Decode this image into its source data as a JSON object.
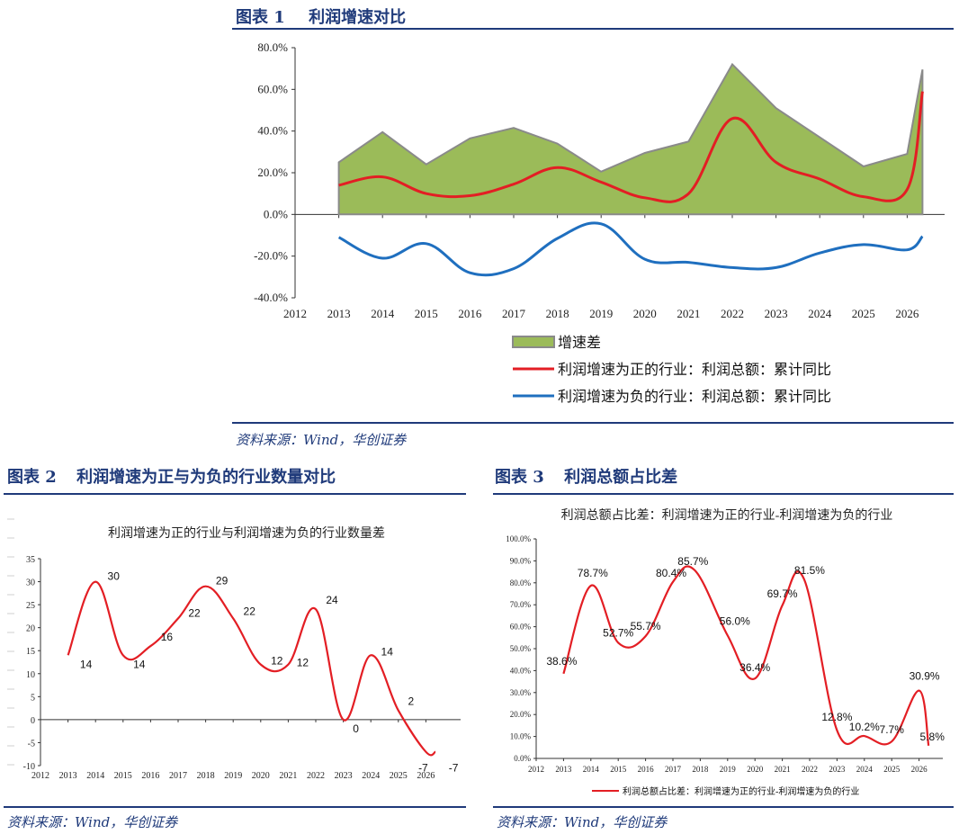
{
  "fig1": {
    "header_label": "图表 1",
    "header_title": "利润增速对比",
    "source": "资料来源：Wind，华创证券"
  },
  "fig2": {
    "header_label": "图表 2",
    "header_title": "利润增速为正与为负的行业数量对比",
    "source": "资料来源：Wind，华创证券"
  },
  "fig3": {
    "header_label": "图表 3",
    "header_title": "利润总额占比差",
    "source": "资料来源：Wind，华创证券"
  },
  "chart_data": [
    {
      "type": "area",
      "title": "",
      "xlabel": "",
      "ylabel": "",
      "x_ticks": [
        "2012",
        "2013",
        "2014",
        "2015",
        "2016",
        "2017",
        "2018",
        "2019",
        "2020",
        "2021",
        "2022",
        "2023",
        "2024",
        "2025",
        "2026"
      ],
      "y_ticks": [
        "80.0%",
        "60.0%",
        "40.0%",
        "20.0%",
        "0.0%",
        "-20.0%",
        "-40.0%"
      ],
      "ylim": [
        -40,
        80
      ],
      "legend_position": "bottom",
      "grid": false,
      "series": [
        {
          "name": "增速差",
          "type": "area",
          "color": "#9bbb59",
          "x": [
            2013,
            2014,
            2015,
            2016,
            2017,
            2018,
            2019,
            2020,
            2021,
            2022,
            2023,
            2024,
            2025,
            2026,
            2026.35
          ],
          "values": [
            25,
            39.5,
            24,
            36.5,
            41.5,
            34,
            20.5,
            29.5,
            35,
            72,
            51,
            37,
            23,
            29,
            69.5
          ]
        },
        {
          "name": "利润增速为正的行业：利润总额：累计同比",
          "type": "line",
          "color": "#e31e24",
          "x": [
            2013,
            2014,
            2015,
            2016,
            2017,
            2018,
            2019,
            2020,
            2021,
            2022,
            2023,
            2024,
            2025,
            2026,
            2026.35
          ],
          "values": [
            14,
            18,
            10,
            9,
            14.5,
            22.5,
            15.5,
            8,
            10,
            46,
            25,
            17,
            8.5,
            12,
            59
          ]
        },
        {
          "name": "利润增速为负的行业：利润总额：累计同比",
          "type": "line",
          "color": "#1f6fbf",
          "x": [
            2013,
            2014,
            2015,
            2016,
            2017,
            2018,
            2019,
            2020,
            2021,
            2022,
            2023,
            2024,
            2025,
            2026,
            2026.35
          ],
          "values": [
            -11,
            -21,
            -14,
            -28,
            -26,
            -11.5,
            -4.5,
            -21.5,
            -23,
            -25.5,
            -25.5,
            -18.5,
            -14.5,
            -17,
            -10.5
          ]
        }
      ]
    },
    {
      "type": "line",
      "title": "利润增速为正的行业与利润增速为负的行业数量差",
      "xlabel": "",
      "ylabel": "",
      "x_ticks": [
        "2012",
        "2013",
        "2014",
        "2015",
        "2016",
        "2017",
        "2018",
        "2019",
        "2020",
        "2021",
        "2022",
        "2023",
        "2024",
        "2025",
        "2026"
      ],
      "y_ticks": [
        "35",
        "30",
        "25",
        "20",
        "15",
        "10",
        "5",
        "0",
        "-5",
        "-10"
      ],
      "ylim": [
        -10,
        35
      ],
      "series": [
        {
          "name": "",
          "color": "#e31e24",
          "x": [
            2013,
            2014,
            2015,
            2016,
            2017,
            2018,
            2019,
            2020,
            2021,
            2022,
            2023,
            2024,
            2025,
            2026,
            2026.35
          ],
          "values": [
            14,
            30,
            14,
            16,
            22,
            29,
            22,
            12,
            12,
            24,
            0,
            14,
            2,
            -7,
            -7
          ]
        }
      ],
      "data_labels": [
        "14",
        "30",
        "14",
        "16",
        "22",
        "29",
        "22",
        "12",
        "12",
        "24",
        "0",
        "14",
        "2",
        "-7",
        "-7"
      ]
    },
    {
      "type": "line",
      "title": "利润总额占比差：利润增速为正的行业-利润增速为负的行业",
      "xlabel": "",
      "ylabel": "",
      "x_ticks": [
        "2012",
        "2013",
        "2014",
        "2015",
        "2016",
        "2017",
        "2018",
        "2019",
        "2020",
        "2021",
        "2022",
        "2023",
        "2024",
        "2025",
        "2026"
      ],
      "y_ticks": [
        "100.0%",
        "90.0%",
        "80.0%",
        "70.0%",
        "60.0%",
        "50.0%",
        "40.0%",
        "30.0%",
        "20.0%",
        "10.0%",
        "0.0%"
      ],
      "ylim": [
        0,
        100
      ],
      "legend_position": "bottom",
      "series": [
        {
          "name": "利润总额占比差：利润增速为正的行业-利润增速为负的行业",
          "color": "#e31e24",
          "x": [
            2013,
            2014,
            2015,
            2016,
            2017,
            2017.8,
            2019,
            2020,
            2021,
            2021.8,
            2023,
            2024,
            2025,
            2026,
            2026.35
          ],
          "values": [
            38.6,
            78.7,
            52.7,
            55.7,
            80.4,
            85.7,
            56.0,
            36.4,
            69.7,
            81.5,
            12.8,
            10.2,
            7.7,
            30.9,
            5.8
          ]
        }
      ],
      "data_labels": [
        "38.6%",
        "78.7%",
        "52.7%",
        "55.7%",
        "80.4%",
        "85.7%",
        "56.0%",
        "36.4%",
        "69.7%",
        "81.5%",
        "12.8%",
        "10.2%",
        "7.7%",
        "30.9%",
        "5.8%"
      ]
    }
  ]
}
